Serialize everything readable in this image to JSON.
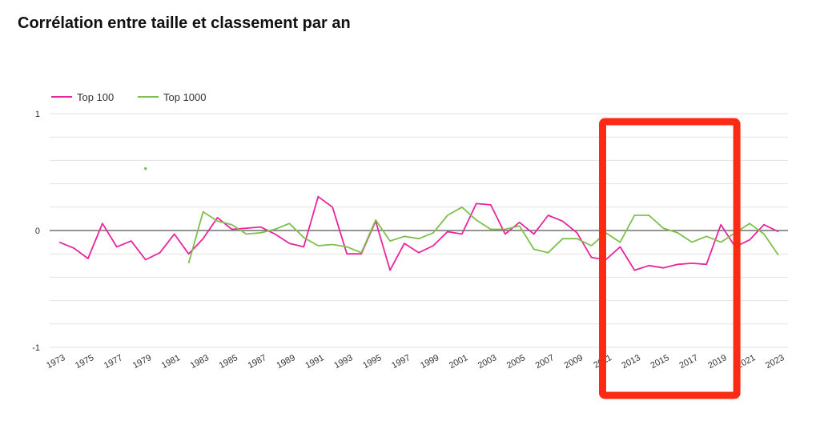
{
  "chart_data": {
    "type": "line",
    "title": "Corrélation entre taille et classement par an",
    "xlabel": "",
    "ylabel": "",
    "ylim": [
      -1,
      1
    ],
    "yticks": [
      "1",
      "0",
      "-1"
    ],
    "grid": true,
    "legend_position": "top-left",
    "x": [
      1973,
      1974,
      1975,
      1976,
      1977,
      1978,
      1979,
      1980,
      1981,
      1982,
      1983,
      1984,
      1985,
      1986,
      1987,
      1988,
      1989,
      1990,
      1991,
      1992,
      1993,
      1994,
      1995,
      1996,
      1997,
      1998,
      1999,
      2000,
      2001,
      2002,
      2003,
      2004,
      2005,
      2006,
      2007,
      2008,
      2009,
      2010,
      2011,
      2012,
      2013,
      2014,
      2015,
      2016,
      2017,
      2018,
      2019,
      2020,
      2021,
      2022,
      2023
    ],
    "x_tick_labels": [
      "1973",
      "1975",
      "1977",
      "1979",
      "1981",
      "1983",
      "1985",
      "1987",
      "1989",
      "1991",
      "1993",
      "1995",
      "1997",
      "1999",
      "2001",
      "2003",
      "2005",
      "2007",
      "2009",
      "2011",
      "2013",
      "2015",
      "2017",
      "2019",
      "2021",
      "2023"
    ],
    "series": [
      {
        "name": "Top 100",
        "color": "#e8259f",
        "values": [
          -0.1,
          -0.15,
          -0.24,
          0.06,
          -0.14,
          -0.09,
          -0.25,
          -0.19,
          -0.03,
          -0.2,
          -0.07,
          0.11,
          0.01,
          0.02,
          0.03,
          -0.03,
          -0.11,
          -0.14,
          0.29,
          0.2,
          -0.2,
          -0.2,
          0.08,
          -0.34,
          -0.11,
          -0.19,
          -0.13,
          -0.01,
          -0.03,
          0.23,
          0.22,
          -0.03,
          0.07,
          -0.03,
          0.13,
          0.08,
          -0.02,
          -0.23,
          -0.25,
          -0.14,
          -0.34,
          -0.3,
          -0.32,
          -0.29,
          -0.28,
          -0.29,
          0.05,
          -0.14,
          -0.08,
          0.05,
          -0.01
        ]
      },
      {
        "name": "Top 1000",
        "color": "#7fbf4d",
        "values": [
          null,
          null,
          null,
          null,
          null,
          null,
          0.53,
          null,
          null,
          -0.28,
          0.16,
          0.08,
          0.05,
          -0.03,
          -0.02,
          0.01,
          0.06,
          -0.06,
          -0.13,
          -0.12,
          -0.14,
          -0.19,
          0.09,
          -0.09,
          -0.05,
          -0.07,
          -0.02,
          0.13,
          0.2,
          0.09,
          0.01,
          0.01,
          0.04,
          -0.16,
          -0.19,
          -0.07,
          -0.07,
          -0.13,
          -0.02,
          -0.1,
          0.13,
          0.13,
          0.02,
          -0.02,
          -0.1,
          -0.05,
          -0.1,
          -0.02,
          0.06,
          -0.03,
          -0.21
        ]
      }
    ],
    "annotation": {
      "type": "highlight-box",
      "color": "#ff2a14",
      "x_range": [
        2011,
        2020
      ]
    }
  }
}
